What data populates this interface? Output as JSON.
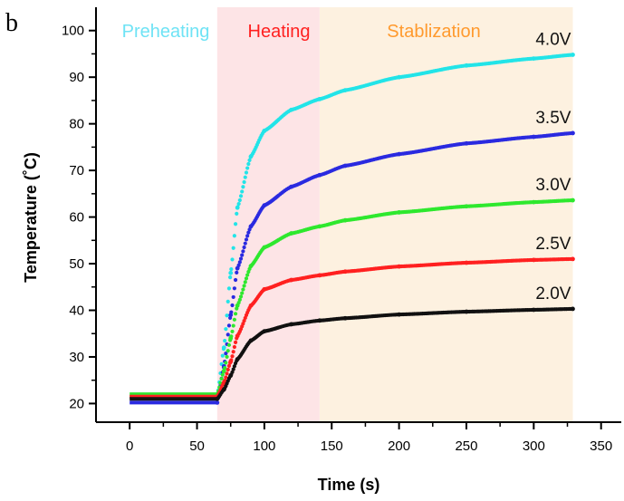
{
  "chart_data": {
    "type": "line",
    "panel_label": "b",
    "xlabel": "Time (s)",
    "ylabel": "Temperature (˚C)",
    "xlim": [
      -25,
      365
    ],
    "ylim": [
      16,
      105
    ],
    "x_ticks": [
      0,
      50,
      100,
      150,
      200,
      250,
      300,
      350
    ],
    "y_ticks": [
      20,
      30,
      40,
      50,
      60,
      70,
      80,
      90,
      100
    ],
    "grid": false,
    "phases": [
      {
        "label": "Preheating",
        "x_start": 0,
        "x_end": 65,
        "color": "#6fe3f5",
        "shade": "#ffffff"
      },
      {
        "label": "Heating",
        "x_start": 65,
        "x_end": 141,
        "color": "#ff2020",
        "shade": "#fde4e6"
      },
      {
        "label": "Stablization",
        "x_start": 141,
        "x_end": 329,
        "color": "#ff9a2e",
        "shade": "#fdf1e0"
      }
    ],
    "series": [
      {
        "name": "4.0V",
        "color": "#22e4e8",
        "start_value": 21.5,
        "rise_start": 65,
        "end_time": 329,
        "points": [
          [
            65,
            21.5
          ],
          [
            70,
            32
          ],
          [
            75,
            48
          ],
          [
            80,
            62
          ],
          [
            90,
            73
          ],
          [
            100,
            78.5
          ],
          [
            120,
            83
          ],
          [
            141,
            85.3
          ],
          [
            160,
            87.2
          ],
          [
            200,
            90
          ],
          [
            250,
            92.5
          ],
          [
            300,
            94
          ],
          [
            329,
            94.8
          ]
        ]
      },
      {
        "name": "3.5V",
        "color": "#2a2ae0",
        "start_value": 20.2,
        "rise_start": 65,
        "end_time": 329,
        "points": [
          [
            65,
            20.2
          ],
          [
            70,
            28
          ],
          [
            75,
            39
          ],
          [
            80,
            49
          ],
          [
            90,
            58
          ],
          [
            100,
            62.5
          ],
          [
            120,
            66.5
          ],
          [
            141,
            69
          ],
          [
            160,
            71
          ],
          [
            200,
            73.5
          ],
          [
            250,
            75.8
          ],
          [
            300,
            77.2
          ],
          [
            329,
            78
          ]
        ]
      },
      {
        "name": "3.0V",
        "color": "#2ee82e",
        "start_value": 22.0,
        "rise_start": 65,
        "end_time": 329,
        "points": [
          [
            65,
            22
          ],
          [
            70,
            27
          ],
          [
            75,
            34
          ],
          [
            80,
            41
          ],
          [
            90,
            49.5
          ],
          [
            100,
            53.5
          ],
          [
            120,
            56.5
          ],
          [
            141,
            58
          ],
          [
            160,
            59.3
          ],
          [
            200,
            61
          ],
          [
            250,
            62.3
          ],
          [
            300,
            63.2
          ],
          [
            329,
            63.6
          ]
        ]
      },
      {
        "name": "2.5V",
        "color": "#ff2020",
        "start_value": 21.5,
        "rise_start": 65,
        "end_time": 329,
        "points": [
          [
            65,
            21.5
          ],
          [
            70,
            24.5
          ],
          [
            75,
            29
          ],
          [
            80,
            34.5
          ],
          [
            90,
            41
          ],
          [
            100,
            44.5
          ],
          [
            120,
            46.5
          ],
          [
            141,
            47.5
          ],
          [
            160,
            48.3
          ],
          [
            200,
            49.4
          ],
          [
            250,
            50.2
          ],
          [
            300,
            50.8
          ],
          [
            329,
            51
          ]
        ]
      },
      {
        "name": "2.0V",
        "color": "#111111",
        "start_value": 21.0,
        "rise_start": 65,
        "end_time": 329,
        "points": [
          [
            65,
            21
          ],
          [
            70,
            23
          ],
          [
            75,
            26
          ],
          [
            80,
            29.5
          ],
          [
            90,
            33.5
          ],
          [
            100,
            35.5
          ],
          [
            120,
            37
          ],
          [
            141,
            37.8
          ],
          [
            160,
            38.3
          ],
          [
            200,
            39.1
          ],
          [
            250,
            39.7
          ],
          [
            300,
            40.1
          ],
          [
            329,
            40.3
          ]
        ]
      }
    ]
  }
}
